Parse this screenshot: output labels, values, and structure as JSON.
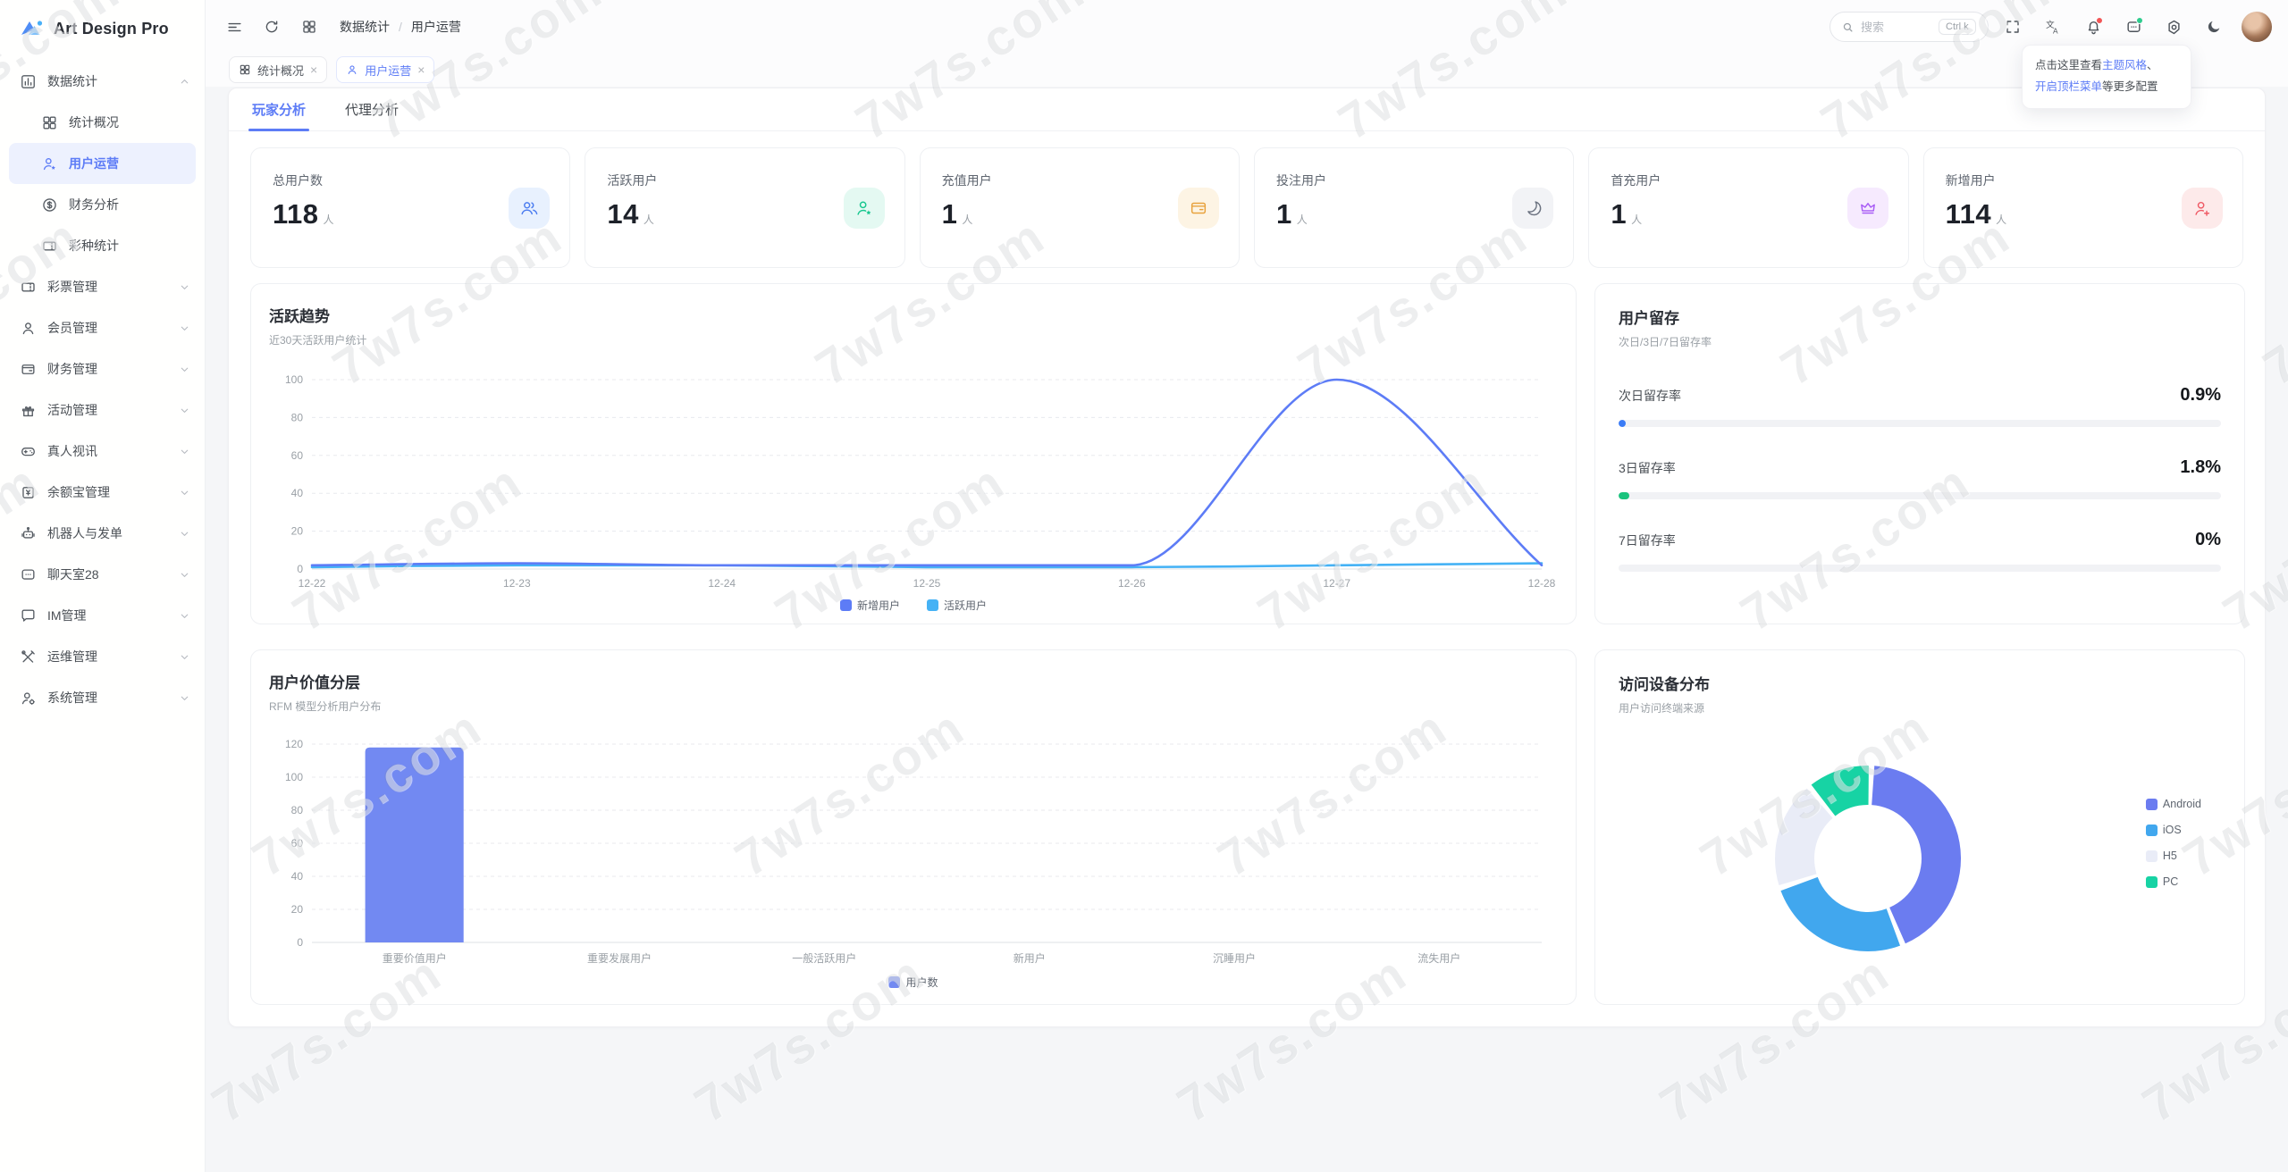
{
  "app": {
    "name": "Art Design Pro"
  },
  "watermark": {
    "text": "7w7s.com"
  },
  "header": {
    "breadcrumb": {
      "items": [
        "数据统计",
        "用户运营"
      ],
      "separator": "/"
    },
    "search": {
      "placeholder": "搜索",
      "shortcut": "Ctrl k"
    },
    "tooltip": {
      "line1": [
        {
          "t": "点击这里查看",
          "link": false
        },
        {
          "t": "主题风格",
          "link": true
        },
        {
          "t": "、",
          "link": false
        }
      ],
      "line2": [
        {
          "t": "开启顶栏菜单",
          "link": true
        },
        {
          "t": "等更多配置",
          "link": false
        }
      ]
    }
  },
  "tabchips": [
    {
      "label": "统计概况",
      "icon": "grid",
      "active": false
    },
    {
      "label": "用户运营",
      "icon": "user",
      "active": true
    }
  ],
  "subtabs": [
    {
      "label": "玩家分析",
      "active": true
    },
    {
      "label": "代理分析",
      "active": false
    }
  ],
  "sidebar": {
    "items": [
      {
        "label": "数据统计",
        "icon": "bar-chart",
        "expanded": true,
        "children": [
          {
            "label": "统计概况",
            "icon": "grid",
            "active": false
          },
          {
            "label": "用户运营",
            "icon": "user-star",
            "active": true
          },
          {
            "label": "财务分析",
            "icon": "dollar",
            "active": false
          },
          {
            "label": "彩种统计",
            "icon": "ticket",
            "active": false
          }
        ]
      },
      {
        "label": "彩票管理",
        "icon": "ticket"
      },
      {
        "label": "会员管理",
        "icon": "user"
      },
      {
        "label": "财务管理",
        "icon": "wallet"
      },
      {
        "label": "活动管理",
        "icon": "gift"
      },
      {
        "label": "真人视讯",
        "icon": "gamepad"
      },
      {
        "label": "余额宝管理",
        "icon": "banknote"
      },
      {
        "label": "机器人与发单",
        "icon": "robot"
      },
      {
        "label": "聊天室28",
        "icon": "chat"
      },
      {
        "label": "IM管理",
        "icon": "message"
      },
      {
        "label": "运维管理",
        "icon": "tools"
      },
      {
        "label": "系统管理",
        "icon": "user-gear"
      }
    ]
  },
  "stats": [
    {
      "label": "总用户数",
      "value": "118",
      "unit": "人",
      "icon": "users",
      "fg": "#4c7df0",
      "bg": "#e8f1fe"
    },
    {
      "label": "活跃用户",
      "value": "14",
      "unit": "人",
      "icon": "user-star",
      "fg": "#17c78f",
      "bg": "#e4f9f2"
    },
    {
      "label": "充值用户",
      "value": "1",
      "unit": "人",
      "icon": "wallet",
      "fg": "#e8a23d",
      "bg": "#fdf4e4"
    },
    {
      "label": "投注用户",
      "value": "1",
      "unit": "人",
      "icon": "bet",
      "fg": "#6b7280",
      "bg": "#f2f3f6"
    },
    {
      "label": "首充用户",
      "value": "1",
      "unit": "人",
      "icon": "crown",
      "fg": "#a85cf5",
      "bg": "#f6eafe"
    },
    {
      "label": "新增用户",
      "value": "114",
      "unit": "人",
      "icon": "user-plus",
      "fg": "#ef5b66",
      "bg": "#fdeaea"
    }
  ],
  "chart_data": [
    {
      "id": "trend",
      "type": "line",
      "title": "活跃趋势",
      "subtitle": "近30天活跃用户统计",
      "x": [
        "12-22",
        "12-23",
        "12-24",
        "12-25",
        "12-26",
        "12-27",
        "12-28"
      ],
      "series": [
        {
          "name": "新增用户",
          "color": "#5d7cf6",
          "values": [
            2,
            3,
            2,
            2,
            2,
            100,
            2
          ]
        },
        {
          "name": "活跃用户",
          "color": "#45b2f5",
          "values": [
            1,
            2,
            2,
            1,
            1,
            2,
            3
          ]
        }
      ],
      "ylim": [
        0,
        100
      ],
      "yticks": [
        0,
        20,
        40,
        60,
        80,
        100
      ],
      "grid": "dashed",
      "legend_position": "bottom"
    },
    {
      "id": "retention",
      "type": "table",
      "title": "用户留存",
      "subtitle": "次日/3日/7日留存率",
      "rows": [
        {
          "label": "次日留存率",
          "value": "0.9%",
          "pct": 0.9,
          "color": "#3b7cf6"
        },
        {
          "label": "3日留存率",
          "value": "1.8%",
          "pct": 1.8,
          "color": "#19c37d"
        },
        {
          "label": "7日留存率",
          "value": "0%",
          "pct": 0,
          "color": "#9aa0a6"
        }
      ]
    },
    {
      "id": "rfm",
      "type": "bar",
      "title": "用户价值分层",
      "subtitle": "RFM 模型分析用户分布",
      "categories": [
        "重要价值用户",
        "重要发展用户",
        "一般活跃用户",
        "新用户",
        "沉睡用户",
        "流失用户"
      ],
      "series": [
        {
          "name": "用户数",
          "color": "#7289f2",
          "values": [
            118,
            0,
            0,
            0,
            0,
            0
          ]
        }
      ],
      "ylim": [
        0,
        120
      ],
      "yticks": [
        0,
        20,
        40,
        60,
        80,
        100,
        120
      ],
      "grid": "dashed",
      "legend_position": "bottom"
    },
    {
      "id": "devices",
      "type": "pie",
      "donut": true,
      "title": "访问设备分布",
      "subtitle": "用户访问终端来源",
      "slices": [
        {
          "name": "Android",
          "pct": 44,
          "color": "#6b7cf0"
        },
        {
          "name": "iOS",
          "pct": 26,
          "color": "#41a7ee"
        },
        {
          "name": "H5",
          "pct": 19,
          "color": "#e9ecf7"
        },
        {
          "name": "PC",
          "pct": 11,
          "color": "#17d3a4"
        }
      ],
      "legend_position": "right"
    }
  ]
}
